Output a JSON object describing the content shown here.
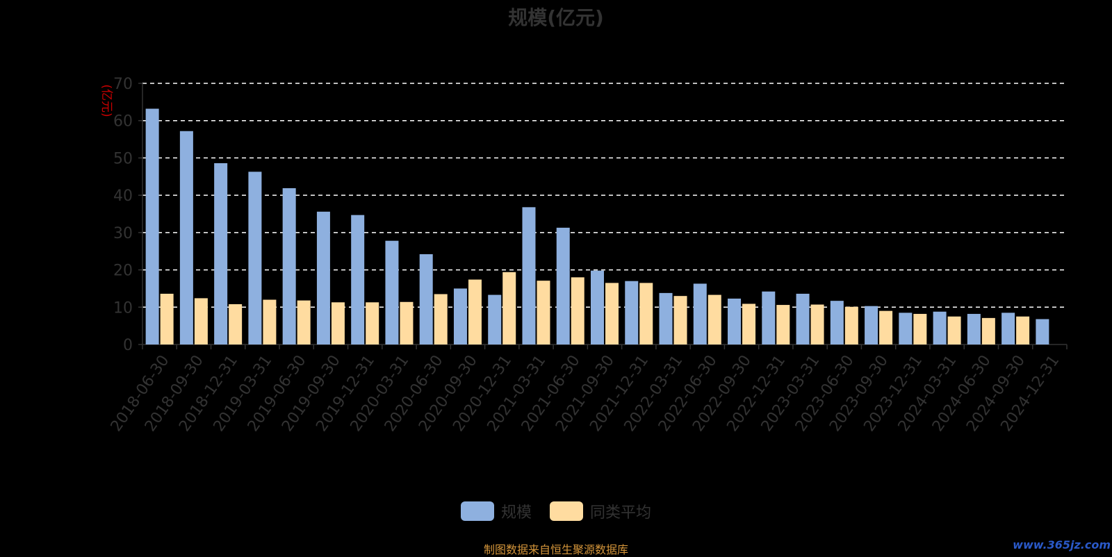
{
  "title": "规模(亿元)",
  "legend": {
    "series1": "规模",
    "series2": "同类平均"
  },
  "credit": "制图数据来自恒生聚源数据库",
  "watermark": "www.365jz.com",
  "colors": {
    "series1": "#8eb0df",
    "series2": "#ffdca0",
    "axis": "#333333",
    "grid": "#ffffff",
    "ylabel": "#cc0000"
  },
  "chart_data": {
    "type": "bar",
    "title": "规模(亿元)",
    "ylabel": "(亿元)",
    "ylim": [
      0,
      70
    ],
    "yticks": [
      0,
      10,
      20,
      30,
      40,
      50,
      60,
      70
    ],
    "grid": true,
    "legend_position": "bottom",
    "categories": [
      "2018-06-30",
      "2018-09-30",
      "2018-12-31",
      "2019-03-31",
      "2019-06-30",
      "2019-09-30",
      "2019-12-31",
      "2020-03-31",
      "2020-06-30",
      "2020-09-30",
      "2020-12-31",
      "2021-03-31",
      "2021-06-30",
      "2021-09-30",
      "2021-12-31",
      "2022-03-31",
      "2022-06-30",
      "2022-09-30",
      "2022-12-31",
      "2023-03-31",
      "2023-06-30",
      "2023-09-30",
      "2023-12-31",
      "2024-03-31",
      "2024-06-30",
      "2024-09-30",
      "2024-12-31"
    ],
    "series": [
      {
        "name": "规模",
        "values": [
          63.2,
          57.2,
          48.6,
          46.3,
          41.9,
          35.6,
          34.7,
          27.8,
          24.2,
          15.0,
          13.3,
          36.8,
          31.3,
          19.8,
          17.0,
          13.8,
          16.3,
          12.3,
          14.2,
          13.6,
          11.7,
          10.3,
          8.5,
          8.8,
          8.2,
          8.5,
          6.8
        ]
      },
      {
        "name": "同类平均",
        "values": [
          13.6,
          12.4,
          10.8,
          12.0,
          11.8,
          11.3,
          11.3,
          11.4,
          13.5,
          17.4,
          19.4,
          17.1,
          18.0,
          16.5,
          16.5,
          13.0,
          13.3,
          10.9,
          10.6,
          10.7,
          10.1,
          9.0,
          8.2,
          7.5,
          7.1,
          7.5,
          null
        ]
      }
    ]
  }
}
